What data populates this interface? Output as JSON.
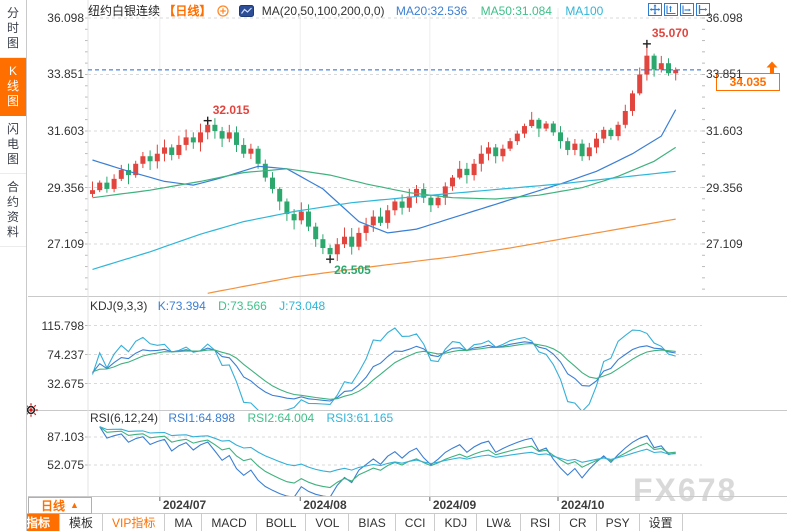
{
  "window": {
    "watermark": "FX678"
  },
  "sidebar": {
    "tabs": [
      {
        "label": "分时图",
        "active": false
      },
      {
        "label": "K线图",
        "active": true
      },
      {
        "label": "闪电图",
        "active": false
      },
      {
        "label": "合约资料",
        "active": false
      }
    ]
  },
  "header": {
    "symbol": "纽约白银连续",
    "period_tag": "【日线】",
    "ma_formula": "MA(20,50,100,200,0,0)",
    "ma_values": [
      {
        "label": "MA20:32.536",
        "color": "#3b7fd4"
      },
      {
        "label": "MA50:31.084",
        "color": "#3fc08a"
      },
      {
        "label": "MA100",
        "color": "#2fb6d9"
      }
    ],
    "icons": [
      "move-icon",
      "axis-zoom-y-icon",
      "axis-zoom-x-icon",
      "pan-right-icon"
    ]
  },
  "current_price": {
    "label": "34.035",
    "value": 34.035
  },
  "kdj_pane": {
    "title": "KDJ(9,3,3)",
    "values": [
      {
        "label": "K:73.394"
      },
      {
        "label": "D:73.566"
      },
      {
        "label": "J:73.048"
      }
    ]
  },
  "rsi_pane": {
    "title": "RSI(6,12,24)",
    "values": [
      {
        "label": "RSI1:64.898"
      },
      {
        "label": "RSI2:64.004"
      },
      {
        "label": "RSI3:61.165"
      }
    ]
  },
  "footer": {
    "period_label": "日线",
    "tabs": [
      {
        "label": "指标",
        "active": true
      },
      {
        "label": "模板"
      },
      {
        "label": "VIP指标",
        "vip": true
      },
      {
        "label": "MA"
      },
      {
        "label": "MACD"
      },
      {
        "label": "BOLL"
      },
      {
        "label": "VOL"
      },
      {
        "label": "BIAS"
      },
      {
        "label": "CCI"
      },
      {
        "label": "KDJ"
      },
      {
        "label": "LW&"
      },
      {
        "label": "RSI"
      },
      {
        "label": "CR"
      },
      {
        "label": "PSY"
      },
      {
        "label": "设置"
      }
    ]
  },
  "chart_data": {
    "type": "candlestick",
    "symbol": "纽约白银连续",
    "period": "日线",
    "colors": {
      "up": "#e2443e",
      "down": "#2ca86e",
      "price_line": "#1f6ad8",
      "ma20": "#3b7fd4",
      "ma50": "#3fb27e",
      "ma100": "#2fb6d9",
      "ma200": "#f2923e",
      "k": "#3b7fd4",
      "d": "#3fb27e",
      "j": "#35b0d8"
    },
    "y_ticks": [
      {
        "v": 36.098,
        "label": "36.098"
      },
      {
        "v": 33.851,
        "label": "33.851"
      },
      {
        "v": 31.603,
        "label": "31.603"
      },
      {
        "v": 29.356,
        "label": "29.356"
      },
      {
        "v": 27.109,
        "label": "27.109"
      }
    ],
    "kdj_ticks": [
      {
        "v": 115.798,
        "label": "115.798"
      },
      {
        "v": 74.237,
        "label": "74.237"
      },
      {
        "v": 32.675,
        "label": "32.675"
      }
    ],
    "rsi_ticks": [
      {
        "v": 87.103,
        "label": "87.103"
      },
      {
        "v": 52.075,
        "label": "52.075"
      }
    ],
    "x_ticks": [
      {
        "label": "2024/07",
        "index": 9.7
      },
      {
        "label": "2024/08",
        "index": 29.2
      },
      {
        "label": "2024/09",
        "index": 47.2
      },
      {
        "label": "2024/10",
        "index": 65
      }
    ],
    "price_line": 34.035,
    "open_first": 29.1,
    "closes": [
      29.25,
      29.55,
      29.3,
      29.7,
      30.05,
      29.85,
      30.3,
      30.6,
      30.4,
      30.7,
      30.95,
      30.65,
      31.05,
      31.35,
      31.15,
      31.55,
      31.85,
      31.6,
      31.3,
      31.55,
      31.05,
      30.7,
      30.9,
      30.3,
      29.75,
      29.3,
      28.8,
      28.3,
      28.05,
      28.4,
      27.8,
      27.3,
      26.95,
      26.7,
      27.1,
      27.4,
      27.0,
      27.55,
      27.85,
      28.2,
      27.95,
      28.45,
      28.8,
      28.55,
      29.0,
      29.3,
      28.95,
      28.65,
      28.95,
      29.4,
      29.75,
      30.1,
      29.85,
      30.3,
      30.7,
      30.95,
      30.6,
      30.9,
      31.2,
      31.5,
      31.8,
      32.05,
      31.7,
      31.9,
      31.55,
      31.2,
      30.85,
      31.1,
      30.6,
      30.95,
      31.3,
      31.65,
      31.4,
      31.85,
      32.4,
      33.1,
      33.85,
      34.6,
      34.05,
      34.3,
      33.9,
      34.035
    ],
    "high_overrides": {
      "16": 32.015,
      "77": 35.07
    },
    "low_overrides": {
      "33": 26.505
    },
    "annotations": [
      {
        "index": 16,
        "price": 32.015,
        "text": "32.015",
        "color": "#e2443e",
        "pos": "above"
      },
      {
        "index": 33,
        "price": 26.505,
        "text": "26.505",
        "color": "#2ca86e",
        "pos": "below"
      },
      {
        "index": 77,
        "price": 35.07,
        "text": "35.070",
        "color": "#e2443e",
        "pos": "above"
      }
    ],
    "ma_lines": [
      {
        "name": "MA20",
        "color": "#3b7fd4",
        "points": [
          [
            0,
            30.45
          ],
          [
            5,
            30.0
          ],
          [
            10,
            29.6
          ],
          [
            14,
            29.45
          ],
          [
            18,
            29.75
          ],
          [
            23,
            30.2
          ],
          [
            27,
            30.1
          ],
          [
            32,
            29.3
          ],
          [
            37,
            28.0
          ],
          [
            41,
            27.55
          ],
          [
            45,
            27.7
          ],
          [
            50,
            28.15
          ],
          [
            55,
            28.6
          ],
          [
            60,
            29.05
          ],
          [
            65,
            29.5
          ],
          [
            70,
            30.0
          ],
          [
            75,
            30.7
          ],
          [
            79,
            31.4
          ],
          [
            81,
            32.45
          ]
        ]
      },
      {
        "name": "MA50",
        "color": "#3fb27e",
        "points": [
          [
            0,
            28.95
          ],
          [
            8,
            29.25
          ],
          [
            15,
            29.6
          ],
          [
            21,
            29.95
          ],
          [
            27,
            30.1
          ],
          [
            33,
            29.85
          ],
          [
            38,
            29.5
          ],
          [
            44,
            29.15
          ],
          [
            50,
            28.95
          ],
          [
            56,
            28.9
          ],
          [
            62,
            29.05
          ],
          [
            68,
            29.35
          ],
          [
            73,
            29.8
          ],
          [
            78,
            30.4
          ],
          [
            81,
            30.95
          ]
        ]
      },
      {
        "name": "MA100",
        "color": "#2fb6d9",
        "points": [
          [
            0,
            26.1
          ],
          [
            8,
            26.8
          ],
          [
            15,
            27.5
          ],
          [
            21,
            28.0
          ],
          [
            28,
            28.4
          ],
          [
            36,
            28.75
          ],
          [
            45,
            29.0
          ],
          [
            55,
            29.25
          ],
          [
            65,
            29.5
          ],
          [
            73,
            29.75
          ],
          [
            81,
            30.0
          ]
        ]
      },
      {
        "name": "MA200",
        "color": "#f2923e",
        "points": [
          [
            16,
            25.15
          ],
          [
            28,
            25.8
          ],
          [
            40,
            26.25
          ],
          [
            50,
            26.6
          ],
          [
            58,
            26.95
          ],
          [
            66,
            27.35
          ],
          [
            74,
            27.75
          ],
          [
            81,
            28.1
          ]
        ]
      }
    ],
    "kdj": {
      "params": [
        9,
        3,
        3
      ],
      "k": 73.394,
      "d": 73.566,
      "j": 73.048
    },
    "rsi": {
      "params": [
        6,
        12,
        24
      ],
      "rsi1": 64.898,
      "rsi2": 64.004,
      "rsi3": 61.165
    }
  }
}
